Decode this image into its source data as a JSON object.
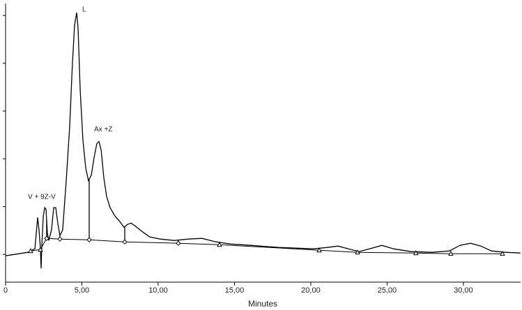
{
  "chart_data": {
    "type": "line",
    "x_label": "Minutes",
    "xlim": [
      0,
      33.75
    ],
    "ylim": [
      -5.8,
      52.5
    ],
    "xticks": [
      0,
      {
        "value": 5,
        "label": "5,00"
      },
      {
        "value": 10,
        "label": "10,00"
      },
      {
        "value": 15,
        "label": "15,00"
      },
      {
        "value": 20,
        "label": "20,00"
      },
      {
        "value": 25,
        "label": "25,00"
      },
      {
        "value": 30,
        "label": "30,00"
      }
    ],
    "yticks": [
      0,
      10,
      20,
      30,
      40,
      50
    ],
    "color": "#000000",
    "series": [
      {
        "color": "#000000",
        "x": [
          0,
          1.46,
          1.92,
          2.01,
          2.1,
          2.19,
          2.28,
          2.33,
          2.37,
          2.47,
          2.56,
          2.65,
          2.74,
          2.83,
          3.01,
          3.15,
          3.29,
          3.42,
          3.56,
          3.74,
          3.97,
          4.2,
          4.38,
          4.52,
          4.66,
          4.75,
          4.89,
          5.07,
          5.25,
          5.43,
          5.62,
          5.8,
          5.98,
          6.12,
          6.26,
          6.44,
          6.62,
          6.85,
          7.17,
          7.49,
          7.76,
          7.99,
          8.22,
          8.54,
          9.0,
          9.45,
          10.14,
          11.05,
          11.96,
          12.88,
          13.79,
          14.7,
          16.07,
          17.9,
          20.18,
          21.1,
          21.78,
          22.47,
          23.15,
          23.84,
          24.66,
          25.43,
          26.58,
          27.95,
          29.09,
          29.77,
          30.46,
          31.14,
          31.83,
          32.74,
          33.74
        ],
        "values": [
          -0.29,
          0.44,
          1.17,
          4.37,
          7.73,
          5.1,
          1.46,
          -2.92,
          1.46,
          8.02,
          9.77,
          9.48,
          4.37,
          2.92,
          5.1,
          9.77,
          9.77,
          6.56,
          3.94,
          5.1,
          15.16,
          26.82,
          39.94,
          47.96,
          50.58,
          47.38,
          34.26,
          23.91,
          18.08,
          15.45,
          16.62,
          20.26,
          23.18,
          23.62,
          21.87,
          16.03,
          12.1,
          9.77,
          8.02,
          6.85,
          5.69,
          6.27,
          6.56,
          5.83,
          4.66,
          3.64,
          3.21,
          2.92,
          3.21,
          3.35,
          2.62,
          2.19,
          1.9,
          1.46,
          1.17,
          1.46,
          1.75,
          1.17,
          0.58,
          1.17,
          1.9,
          1.17,
          0.58,
          0.44,
          0.73,
          1.9,
          2.33,
          1.75,
          0.73,
          0.44,
          0.29
        ]
      }
    ],
    "baseline": {
      "color": "#000000",
      "x": [
        1.64,
        2.28,
        2.69,
        3.56,
        5.48,
        7.81,
        11.32,
        14.02,
        20.55,
        23.06,
        26.89,
        29.18,
        32.56
      ],
      "values": [
        0.73,
        1.02,
        3.35,
        3.21,
        3.06,
        2.62,
        2.33,
        2.04,
        0.87,
        0.44,
        0.29,
        0.15,
        0.15
      ],
      "markers": [
        "triangle",
        "triangle",
        "diamond",
        "diamond",
        "diamond",
        "diamond",
        "diamond",
        "triangle",
        "triangle",
        "triangle",
        "triangle",
        "triangle",
        "triangle"
      ]
    },
    "annotations": [
      "L",
      "Ax +Z",
      "V + 9Z-V"
    ]
  }
}
